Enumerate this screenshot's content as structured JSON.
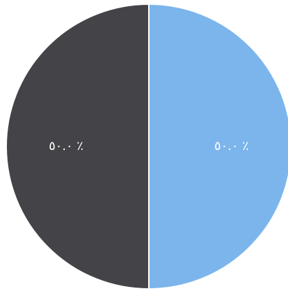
{
  "chart_data": {
    "type": "pie",
    "categories": [
      "",
      ""
    ],
    "values": [
      50.0,
      50.0
    ],
    "slice_labels": [
      "٥٠.٠ ٪",
      "٥٠.٠ ٪"
    ],
    "colors": [
      "#7cb5ec",
      "#434348"
    ],
    "start_angle_deg": 0,
    "direction": "clockwise",
    "legend": "none",
    "title": ""
  }
}
